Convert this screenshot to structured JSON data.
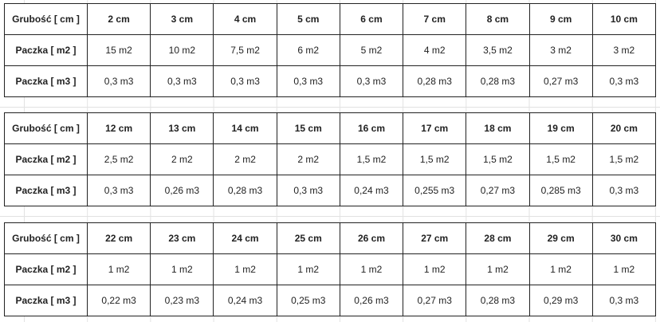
{
  "tables": [
    {
      "header": "Grubość [ cm ]",
      "thickness": [
        "2 cm",
        "3 cm",
        "4 cm",
        "5 cm",
        "6 cm",
        "7 cm",
        "8 cm",
        "9 cm",
        "10 cm"
      ],
      "m2_label": "Paczka [ m2 ]",
      "m2": [
        "15 m2",
        "10 m2",
        "7,5 m2",
        "6 m2",
        "5 m2",
        "4 m2",
        "3,5 m2",
        "3 m2",
        "3 m2"
      ],
      "m3_label": "Paczka [ m3 ]",
      "m3": [
        "0,3 m3",
        "0,3 m3",
        "0,3 m3",
        "0,3 m3",
        "0,3 m3",
        "0,28 m3",
        "0,28 m3",
        "0,27 m3",
        "0,3 m3"
      ]
    },
    {
      "header": "Grubość [ cm ]",
      "thickness": [
        "12 cm",
        "13 cm",
        "14 cm",
        "15 cm",
        "16 cm",
        "17 cm",
        "18 cm",
        "19 cm",
        "20 cm"
      ],
      "m2_label": "Paczka [ m2 ]",
      "m2": [
        "2,5 m2",
        "2 m2",
        "2 m2",
        "2 m2",
        "1,5 m2",
        "1,5 m2",
        "1,5 m2",
        "1,5 m2",
        "1,5 m2"
      ],
      "m3_label": "Paczka [ m3 ]",
      "m3": [
        "0,3 m3",
        "0,26 m3",
        "0,28 m3",
        "0,3 m3",
        "0,24 m3",
        "0,255 m3",
        "0,27 m3",
        "0,285 m3",
        "0,3 m3"
      ]
    },
    {
      "header": "Grubość [ cm ]",
      "thickness": [
        "22 cm",
        "23 cm",
        "24 cm",
        "25 cm",
        "26 cm",
        "27 cm",
        "28 cm",
        "29 cm",
        "30 cm"
      ],
      "m2_label": "Paczka [ m2 ]",
      "m2": [
        "1 m2",
        "1 m2",
        "1 m2",
        "1 m2",
        "1 m2",
        "1 m2",
        "1 m2",
        "1 m2",
        "1 m2"
      ],
      "m3_label": "Paczka [ m3 ]",
      "m3": [
        "0,22 m3",
        "0,23 m3",
        "0,24 m3",
        "0,25 m3",
        "0,26 m3",
        "0,27 m3",
        "0,28 m3",
        "0,29 m3",
        "0,3 m3"
      ]
    }
  ]
}
